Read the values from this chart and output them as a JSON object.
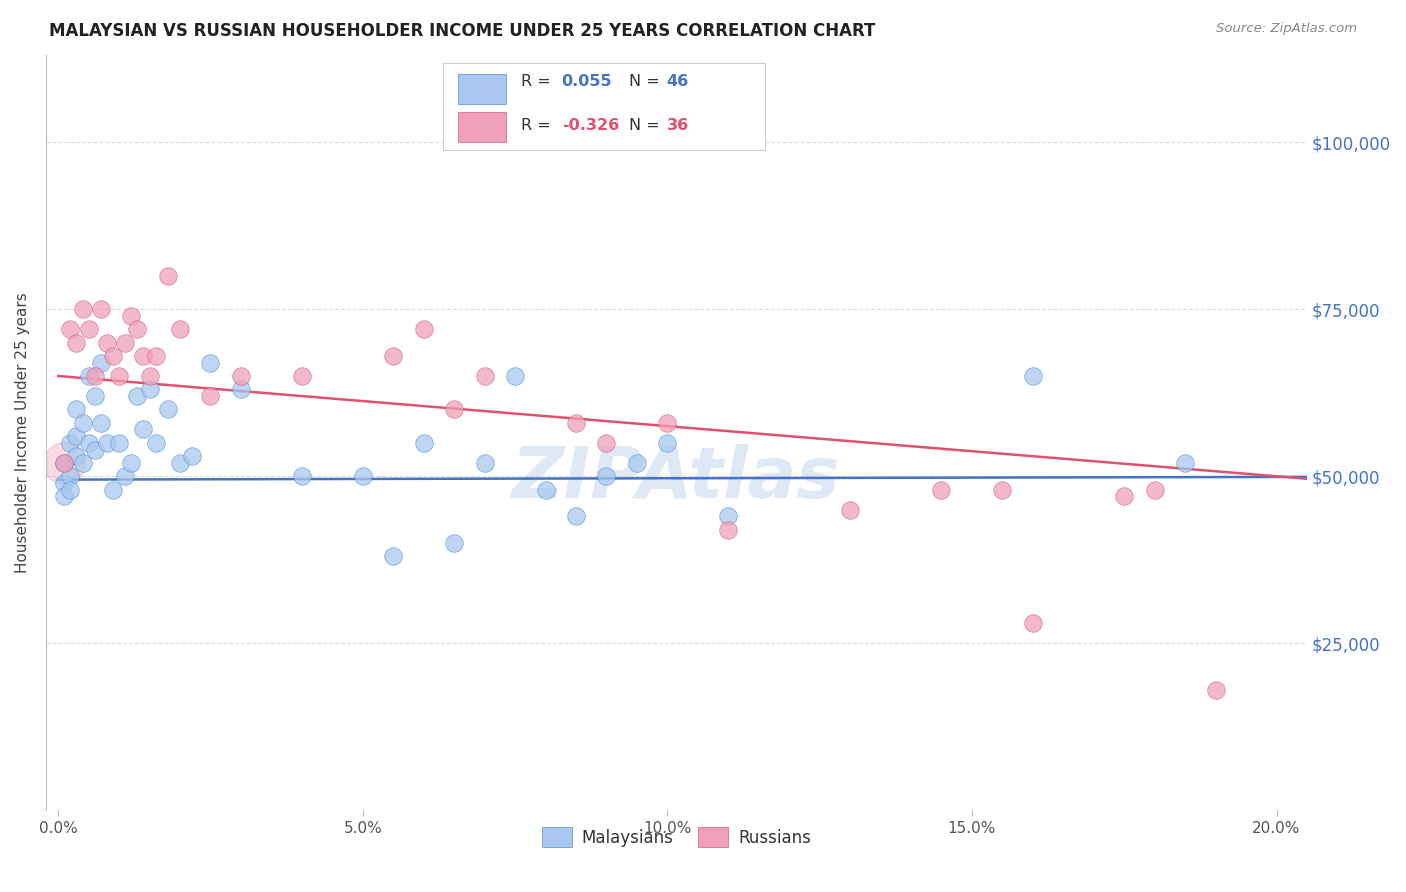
{
  "title": "MALAYSIAN VS RUSSIAN HOUSEHOLDER INCOME UNDER 25 YEARS CORRELATION CHART",
  "source": "Source: ZipAtlas.com",
  "ylabel": "Householder Income Under 25 years",
  "ylim": [
    0,
    113000
  ],
  "xlim": [
    -0.002,
    0.205
  ],
  "yticks": [
    25000,
    50000,
    75000,
    100000
  ],
  "xticks": [
    0.0,
    0.05,
    0.1,
    0.15,
    0.2
  ],
  "legend_r_blue": "0.055",
  "legend_n_blue": "46",
  "legend_r_pink": "-0.326",
  "legend_n_pink": "36",
  "blue_fill": "#A8C8F0",
  "blue_edge": "#5090D0",
  "blue_line": "#4472C4",
  "pink_fill": "#F0A0B8",
  "pink_edge": "#D06080",
  "pink_line": "#E05070",
  "bg_color": "#FFFFFF",
  "grid_color": "#DDDDDD",
  "watermark": "ZIPAtlas",
  "malaysians_x": [
    0.001,
    0.001,
    0.001,
    0.002,
    0.002,
    0.002,
    0.003,
    0.003,
    0.003,
    0.004,
    0.004,
    0.005,
    0.005,
    0.006,
    0.006,
    0.007,
    0.007,
    0.008,
    0.009,
    0.01,
    0.011,
    0.012,
    0.013,
    0.014,
    0.015,
    0.016,
    0.018,
    0.02,
    0.022,
    0.025,
    0.03,
    0.04,
    0.05,
    0.055,
    0.06,
    0.065,
    0.07,
    0.075,
    0.08,
    0.085,
    0.09,
    0.095,
    0.1,
    0.11,
    0.16,
    0.185
  ],
  "malaysians_y": [
    52000,
    49000,
    47000,
    55000,
    50000,
    48000,
    60000,
    56000,
    53000,
    58000,
    52000,
    65000,
    55000,
    62000,
    54000,
    67000,
    58000,
    55000,
    48000,
    55000,
    50000,
    52000,
    62000,
    57000,
    63000,
    55000,
    60000,
    52000,
    53000,
    67000,
    63000,
    50000,
    50000,
    38000,
    55000,
    40000,
    52000,
    65000,
    48000,
    44000,
    50000,
    52000,
    55000,
    44000,
    65000,
    52000
  ],
  "russians_x": [
    0.001,
    0.002,
    0.003,
    0.004,
    0.005,
    0.006,
    0.007,
    0.008,
    0.009,
    0.01,
    0.011,
    0.012,
    0.013,
    0.014,
    0.015,
    0.016,
    0.018,
    0.02,
    0.025,
    0.03,
    0.04,
    0.055,
    0.06,
    0.065,
    0.07,
    0.085,
    0.09,
    0.1,
    0.11,
    0.13,
    0.145,
    0.155,
    0.16,
    0.175,
    0.18,
    0.19
  ],
  "russians_y": [
    52000,
    72000,
    70000,
    75000,
    72000,
    65000,
    75000,
    70000,
    68000,
    65000,
    70000,
    74000,
    72000,
    68000,
    65000,
    68000,
    80000,
    72000,
    62000,
    65000,
    65000,
    68000,
    72000,
    60000,
    65000,
    58000,
    55000,
    58000,
    42000,
    45000,
    48000,
    48000,
    28000,
    47000,
    48000,
    18000
  ],
  "russians_large_x": [
    0.001
  ],
  "russians_large_y": [
    52000
  ]
}
